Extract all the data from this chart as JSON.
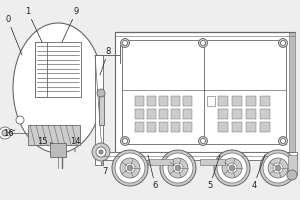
{
  "bg_color": "#eeeeee",
  "lc": "#666666",
  "lc2": "#888888",
  "white": "#ffffff",
  "gray1": "#bbbbbb",
  "gray2": "#cccccc",
  "gray3": "#999999",
  "dark": "#444444"
}
